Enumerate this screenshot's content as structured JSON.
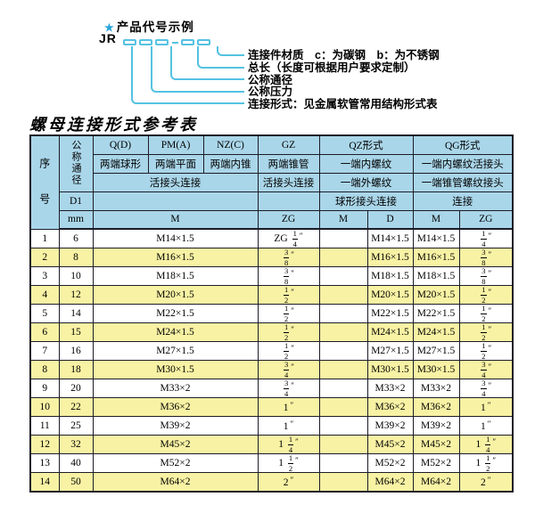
{
  "colors": {
    "header_blue": "#aad6e9",
    "row_yellow": "#f8f2a4",
    "table_border": "#1c1c28",
    "diagram_cyan": "#54c2e2",
    "star_blue": "#29a3d9"
  },
  "diagram": {
    "star": "★",
    "title": "产品代号示例",
    "prefix": "JR",
    "labels": [
      "连接件材质　c：为碳钢　b：为不锈钢",
      "总长（长度可根据用户要求定制）",
      "公称通径",
      "公称压力",
      "连接形式：见金属软管常用结构形式表"
    ]
  },
  "table": {
    "title": "螺母连接形式参考表",
    "header": {
      "serial": "序号",
      "diameter": "公称通径",
      "d1": "D1",
      "unit": "mm",
      "q": "Q(D)",
      "q_sub": "两端球形",
      "pm": "PM(A)",
      "pm_sub": "两端平面",
      "nz": "NZ(C)",
      "nz_sub": "两端内锥",
      "gz": "GZ",
      "gz_sub": "两端锥管",
      "union_join_left": "活接头连接",
      "union_join_gz": "活接头连接",
      "qz": "QZ形式",
      "qz_inner": "一端内螺纹",
      "qz_outer": "一端外螺纹",
      "qz_join": "球形接头连接",
      "qg": "QG形式",
      "qg_inner": "一端内螺纹活接头",
      "qg_taper": "一端锥管螺纹接头",
      "qg_join": "连接",
      "m": "M",
      "zg": "ZG",
      "d": "D"
    },
    "rows": [
      {
        "no": "1",
        "dn": "6",
        "m": "M14×1.5",
        "gz": {
          "pre": "ZG ",
          "num": "1",
          "den": "4",
          "inch": "″"
        },
        "qz_m": "",
        "qz_d": "M14×1.5",
        "qg_m": "M14×1.5",
        "qg": {
          "pre": "",
          "num": "1",
          "den": "4",
          "inch": "″"
        }
      },
      {
        "no": "2",
        "dn": "8",
        "m": "M16×1.5",
        "gz": {
          "pre": "",
          "num": "3",
          "den": "8",
          "inch": "″"
        },
        "qz_m": "",
        "qz_d": "M16×1.5",
        "qg_m": "M16×1.5",
        "qg": {
          "pre": "",
          "num": "3",
          "den": "8",
          "inch": "″"
        }
      },
      {
        "no": "3",
        "dn": "10",
        "m": "M18×1.5",
        "gz": {
          "pre": "",
          "num": "3",
          "den": "8",
          "inch": "″"
        },
        "qz_m": "",
        "qz_d": "M18×1.5",
        "qg_m": "M18×1.5",
        "qg": {
          "pre": "",
          "num": "3",
          "den": "8",
          "inch": "″"
        }
      },
      {
        "no": "4",
        "dn": "12",
        "m": "M20×1.5",
        "gz": {
          "pre": "",
          "num": "1",
          "den": "2",
          "inch": "″"
        },
        "qz_m": "",
        "qz_d": "M20×1.5",
        "qg_m": "M20×1.5",
        "qg": {
          "pre": "",
          "num": "1",
          "den": "2",
          "inch": "″"
        }
      },
      {
        "no": "5",
        "dn": "14",
        "m": "M22×1.5",
        "gz": {
          "pre": "",
          "num": "1",
          "den": "2",
          "inch": "″"
        },
        "qz_m": "",
        "qz_d": "M22×1.5",
        "qg_m": "M22×1.5",
        "qg": {
          "pre": "",
          "num": "1",
          "den": "2",
          "inch": "″"
        }
      },
      {
        "no": "6",
        "dn": "15",
        "m": "M24×1.5",
        "gz": {
          "pre": "",
          "num": "1",
          "den": "2",
          "inch": "″"
        },
        "qz_m": "",
        "qz_d": "M24×1.5",
        "qg_m": "M24×1.5",
        "qg": {
          "pre": "",
          "num": "1",
          "den": "2",
          "inch": "″"
        }
      },
      {
        "no": "7",
        "dn": "16",
        "m": "M27×1.5",
        "gz": {
          "pre": "",
          "num": "1",
          "den": "2",
          "inch": "″"
        },
        "qz_m": "",
        "qz_d": "M27×1.5",
        "qg_m": "M27×1.5",
        "qg": {
          "pre": "",
          "num": "1",
          "den": "2",
          "inch": "″"
        }
      },
      {
        "no": "8",
        "dn": "18",
        "m": "M30×1.5",
        "gz": {
          "pre": "",
          "num": "3",
          "den": "4",
          "inch": "″"
        },
        "qz_m": "",
        "qz_d": "M30×1.5",
        "qg_m": "M30×1.5",
        "qg": {
          "pre": "",
          "num": "3",
          "den": "4",
          "inch": "″"
        }
      },
      {
        "no": "9",
        "dn": "20",
        "m": "M33×2",
        "gz": {
          "pre": "",
          "num": "3",
          "den": "4",
          "inch": "″"
        },
        "qz_m": "",
        "qz_d": "M33×2",
        "qg_m": "M33×2",
        "qg": {
          "pre": "",
          "num": "3",
          "den": "4",
          "inch": "″"
        }
      },
      {
        "no": "10",
        "dn": "22",
        "m": "M36×2",
        "gz": {
          "pre": "1",
          "num": "",
          "den": "",
          "inch": "″"
        },
        "qz_m": "",
        "qz_d": "M36×2",
        "qg_m": "M36×2",
        "qg": {
          "pre": "1",
          "num": "",
          "den": "",
          "inch": "″"
        }
      },
      {
        "no": "11",
        "dn": "25",
        "m": "M39×2",
        "gz": {
          "pre": "1",
          "num": "",
          "den": "",
          "inch": "″"
        },
        "qz_m": "",
        "qz_d": "M39×2",
        "qg_m": "M39×2",
        "qg": {
          "pre": "1",
          "num": "",
          "den": "",
          "inch": "″"
        }
      },
      {
        "no": "12",
        "dn": "32",
        "m": "M45×2",
        "gz": {
          "pre": "1 ",
          "num": "1",
          "den": "4",
          "inch": "″"
        },
        "qz_m": "",
        "qz_d": "M45×2",
        "qg_m": "M45×2",
        "qg": {
          "pre": "1 ",
          "num": "1",
          "den": "4",
          "inch": "″"
        }
      },
      {
        "no": "13",
        "dn": "40",
        "m": "M52×2",
        "gz": {
          "pre": "1 ",
          "num": "1",
          "den": "2",
          "inch": "″"
        },
        "qz_m": "",
        "qz_d": "M52×2",
        "qg_m": "M52×2",
        "qg": {
          "pre": "1 ",
          "num": "1",
          "den": "2",
          "inch": "″"
        }
      },
      {
        "no": "14",
        "dn": "50",
        "m": "M64×2",
        "gz": {
          "pre": "2",
          "num": "",
          "den": "",
          "inch": "″"
        },
        "qz_m": "",
        "qz_d": "M64×2",
        "qg_m": "M64×2",
        "qg": {
          "pre": "2",
          "num": "",
          "den": "",
          "inch": "″"
        }
      }
    ]
  }
}
